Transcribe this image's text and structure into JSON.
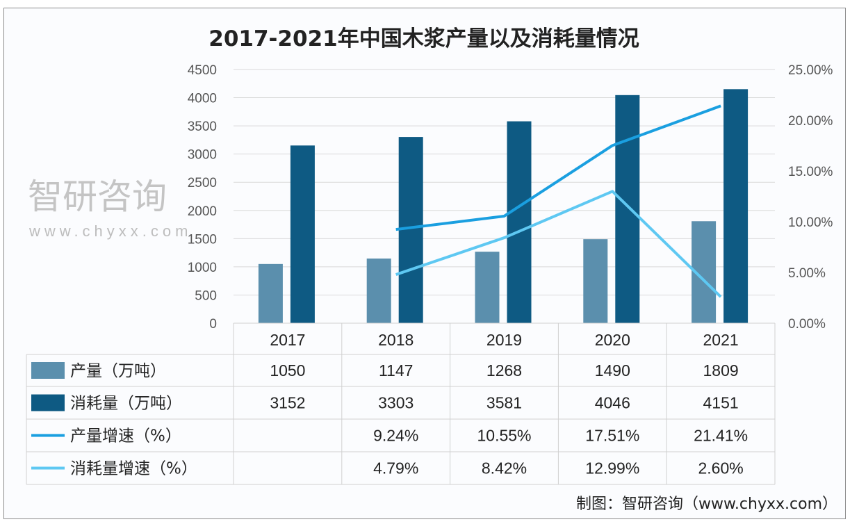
{
  "chart_data": {
    "type": "bar",
    "title": "2017-2021年中国木浆产量以及消耗量情况",
    "categories": [
      "2017",
      "2018",
      "2019",
      "2020",
      "2021"
    ],
    "y_left": {
      "range": [
        0,
        4500
      ],
      "ticks": [
        "0",
        "500",
        "1000",
        "1500",
        "2000",
        "2500",
        "3000",
        "3500",
        "4000",
        "4500"
      ]
    },
    "y_right": {
      "range": [
        0,
        25
      ],
      "ticks": [
        "0.00%",
        "5.00%",
        "10.00%",
        "15.00%",
        "20.00%",
        "25.00%"
      ]
    },
    "grid": true,
    "legend": "data-table",
    "series": [
      {
        "name": "产量（万吨）",
        "type": "bar",
        "axis": "left",
        "color": "#5b8fad",
        "values": [
          1050,
          1147,
          1268,
          1490,
          1809
        ],
        "labels": [
          "1050",
          "1147",
          "1268",
          "1490",
          "1809"
        ]
      },
      {
        "name": "消耗量（万吨）",
        "type": "bar",
        "axis": "left",
        "color": "#0e5a83",
        "values": [
          3152,
          3303,
          3581,
          4046,
          4151
        ],
        "labels": [
          "3152",
          "3303",
          "3581",
          "4046",
          "4151"
        ]
      },
      {
        "name": "产量增速（%）",
        "type": "line",
        "axis": "right",
        "color": "#1a9fe0",
        "values": [
          null,
          9.24,
          10.55,
          17.51,
          21.41
        ],
        "labels": [
          "",
          "9.24%",
          "10.55%",
          "17.51%",
          "21.41%"
        ]
      },
      {
        "name": "消耗量增速（%）",
        "type": "line",
        "axis": "right",
        "color": "#5ec8f2",
        "values": [
          null,
          4.79,
          8.42,
          12.99,
          2.6
        ],
        "labels": [
          "",
          "4.79%",
          "8.42%",
          "12.99%",
          "2.60%"
        ]
      }
    ]
  },
  "source": "制图：智研咨询（www.chyxx.com）",
  "watermark": {
    "text": "智研咨询",
    "url": "www.chyxx.com"
  }
}
